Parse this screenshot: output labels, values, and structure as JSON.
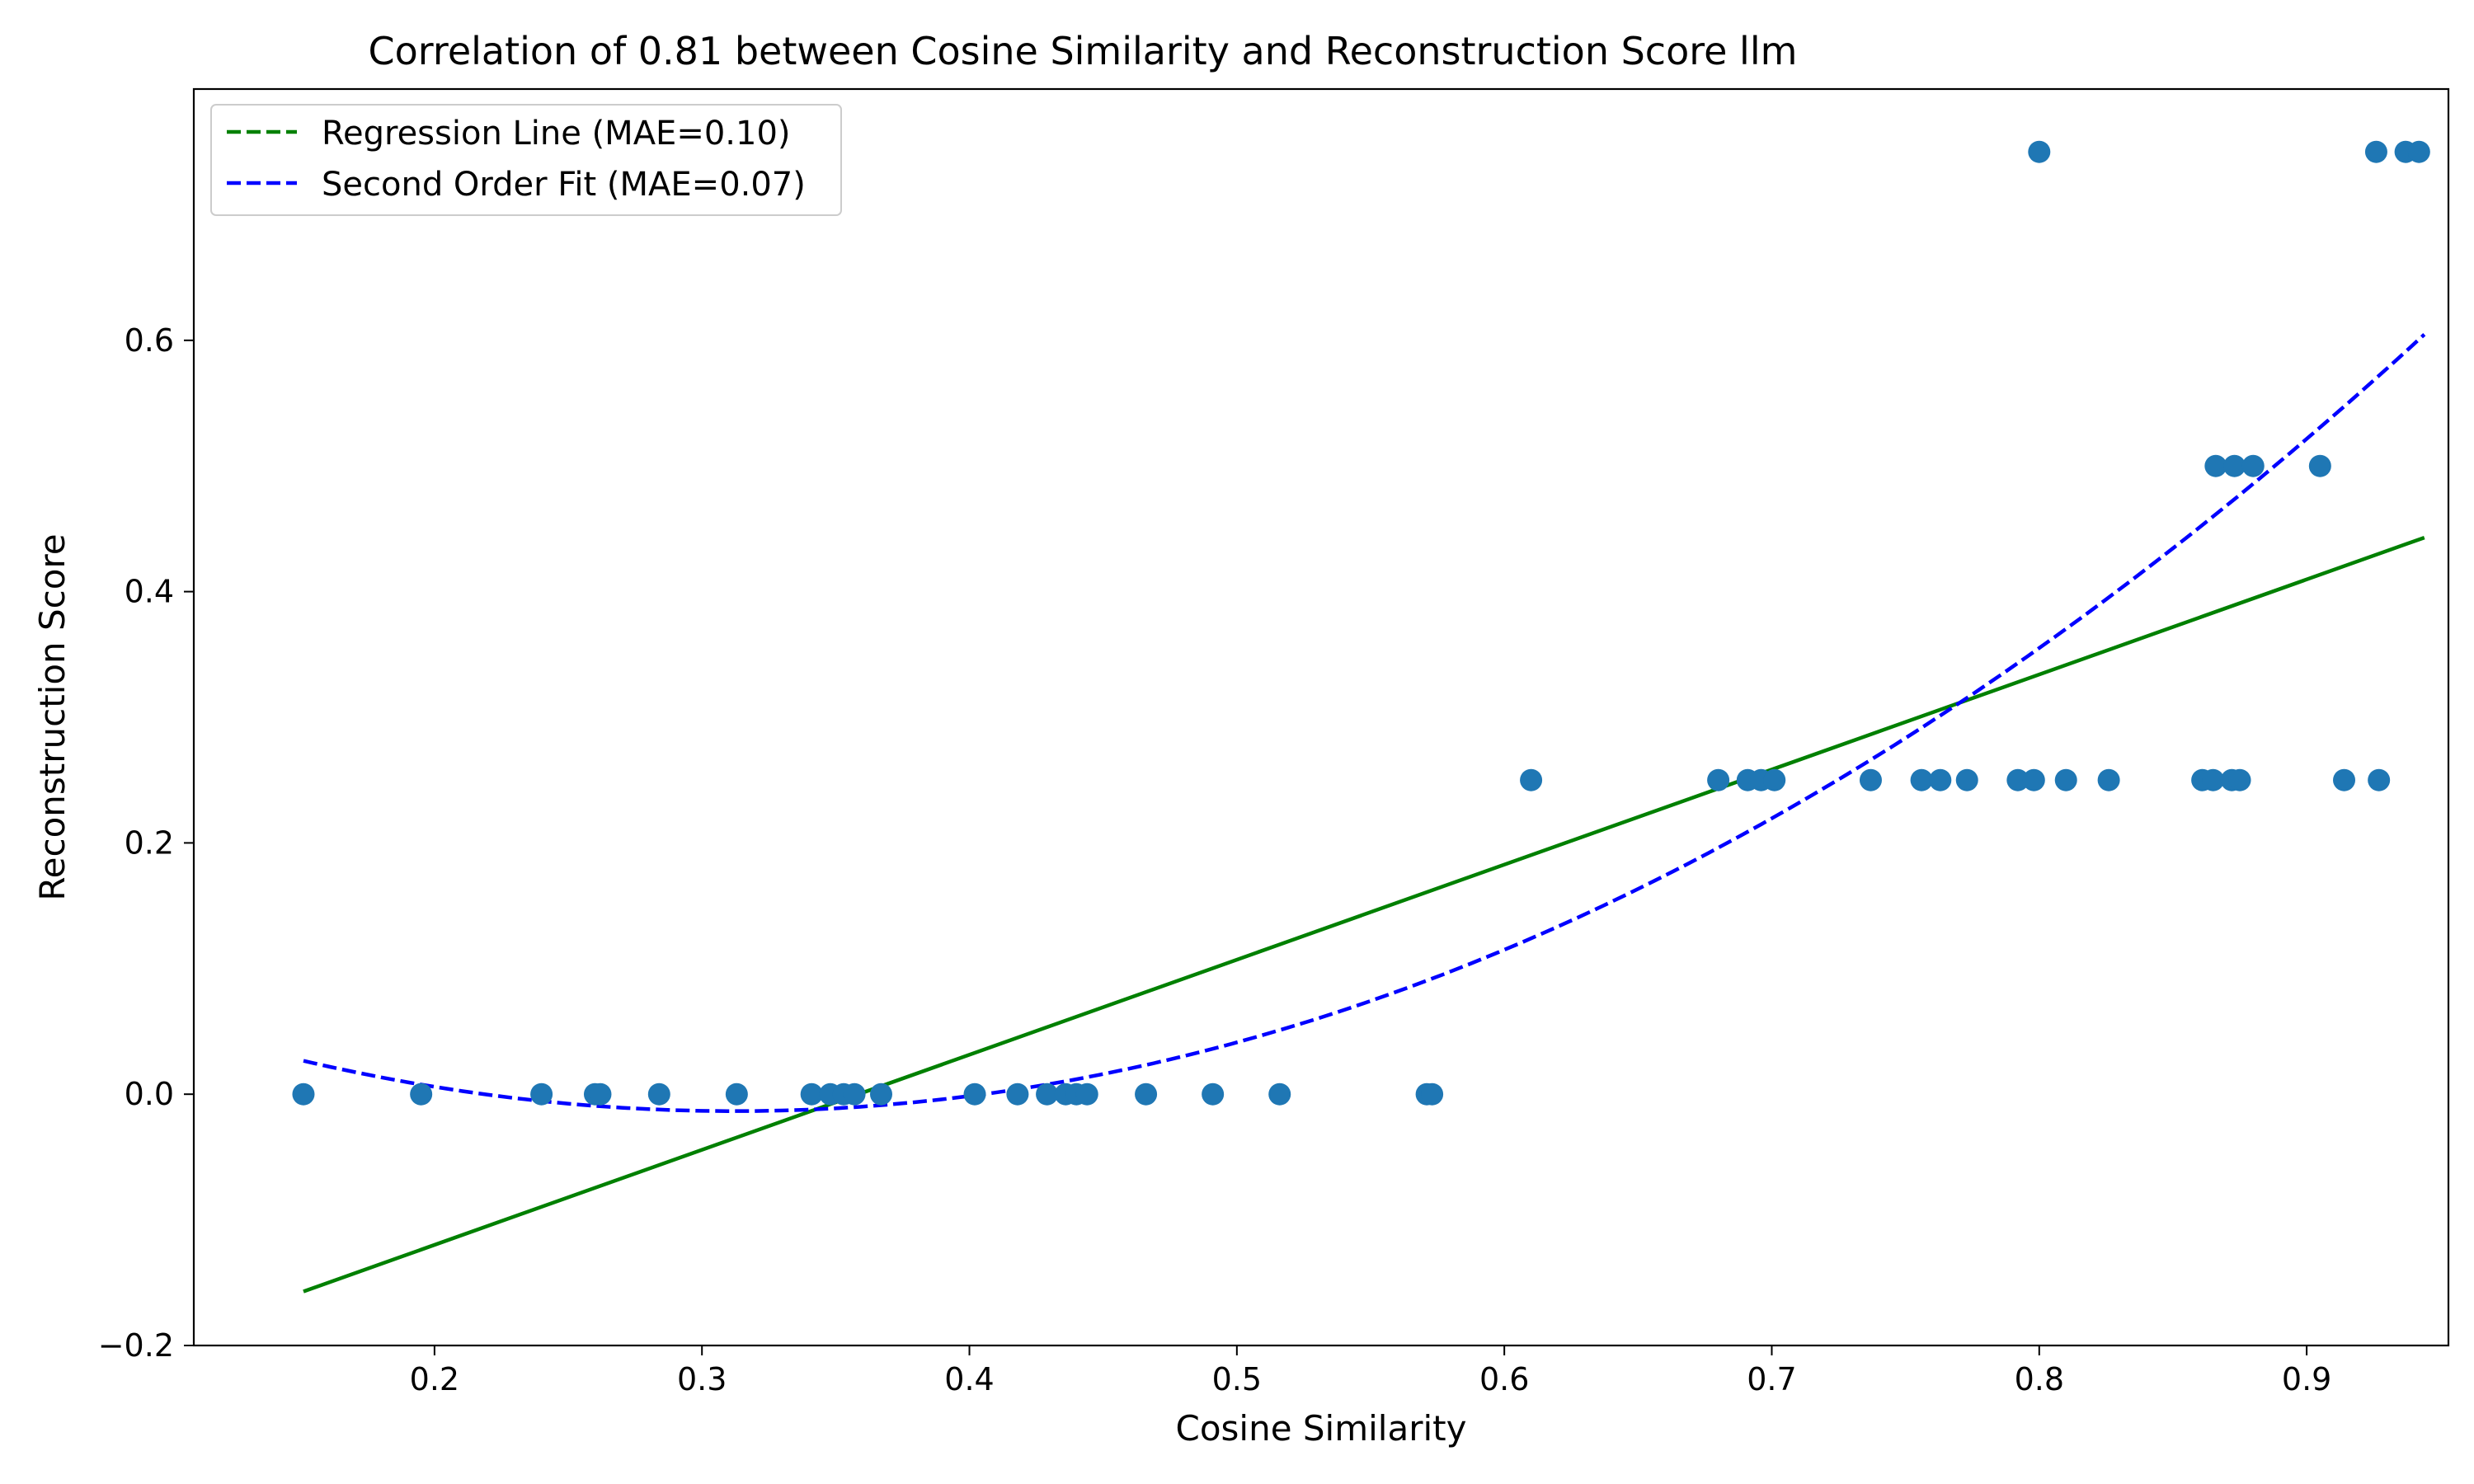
{
  "chart_data": {
    "type": "scatter",
    "title": "Correlation of 0.81 between Cosine Similarity and Reconstruction Score llm",
    "xlabel": "Cosine Similarity",
    "ylabel": "Reconstruction Score",
    "xlim": [
      0.11,
      0.953
    ],
    "ylim": [
      -0.2,
      0.8
    ],
    "xticks": [
      "0.2",
      "0.3",
      "0.4",
      "0.5",
      "0.6",
      "0.7",
      "0.8",
      "0.9"
    ],
    "yticks": [
      "−0.2",
      "0.0",
      "0.2",
      "0.4",
      "0.6"
    ],
    "grid": false,
    "legend_position": "upper-left",
    "point_color": "#1f77b4",
    "points": [
      [
        0.151,
        0.0
      ],
      [
        0.195,
        0.0
      ],
      [
        0.24,
        0.0
      ],
      [
        0.26,
        0.0
      ],
      [
        0.262,
        0.0
      ],
      [
        0.284,
        0.0
      ],
      [
        0.313,
        0.0
      ],
      [
        0.341,
        0.0
      ],
      [
        0.348,
        0.0
      ],
      [
        0.353,
        0.0
      ],
      [
        0.357,
        0.0
      ],
      [
        0.367,
        0.0
      ],
      [
        0.402,
        0.0
      ],
      [
        0.418,
        0.0
      ],
      [
        0.429,
        0.0
      ],
      [
        0.436,
        0.0
      ],
      [
        0.44,
        0.0
      ],
      [
        0.444,
        0.0
      ],
      [
        0.466,
        0.0
      ],
      [
        0.491,
        0.0
      ],
      [
        0.516,
        0.0
      ],
      [
        0.571,
        0.0
      ],
      [
        0.573,
        0.0
      ],
      [
        0.61,
        0.25
      ],
      [
        0.68,
        0.25
      ],
      [
        0.691,
        0.25
      ],
      [
        0.696,
        0.25
      ],
      [
        0.701,
        0.25
      ],
      [
        0.737,
        0.25
      ],
      [
        0.756,
        0.25
      ],
      [
        0.763,
        0.25
      ],
      [
        0.773,
        0.25
      ],
      [
        0.792,
        0.25
      ],
      [
        0.798,
        0.25
      ],
      [
        0.81,
        0.25
      ],
      [
        0.826,
        0.25
      ],
      [
        0.861,
        0.25
      ],
      [
        0.865,
        0.25
      ],
      [
        0.872,
        0.25
      ],
      [
        0.875,
        0.25
      ],
      [
        0.914,
        0.25
      ],
      [
        0.927,
        0.25
      ],
      [
        0.866,
        0.5
      ],
      [
        0.873,
        0.5
      ],
      [
        0.88,
        0.5
      ],
      [
        0.905,
        0.5
      ],
      [
        0.8,
        0.75
      ],
      [
        0.926,
        0.75
      ],
      [
        0.937,
        0.75
      ],
      [
        0.942,
        0.75
      ]
    ],
    "series": [
      {
        "name": "Regression Line (MAE=0.10)",
        "type": "linear",
        "color": "#008000",
        "dash": "dashed",
        "x": [
          0.151,
          0.944
        ],
        "y": [
          -0.157,
          0.443
        ]
      },
      {
        "name": "Second Order Fit (MAE=0.07)",
        "type": "quadratic",
        "color": "#0000ff",
        "dash": "dashed",
        "x": [
          0.151,
          0.944
        ],
        "coefficients": [
          1.547,
          -0.965,
          0.137
        ]
      }
    ]
  }
}
